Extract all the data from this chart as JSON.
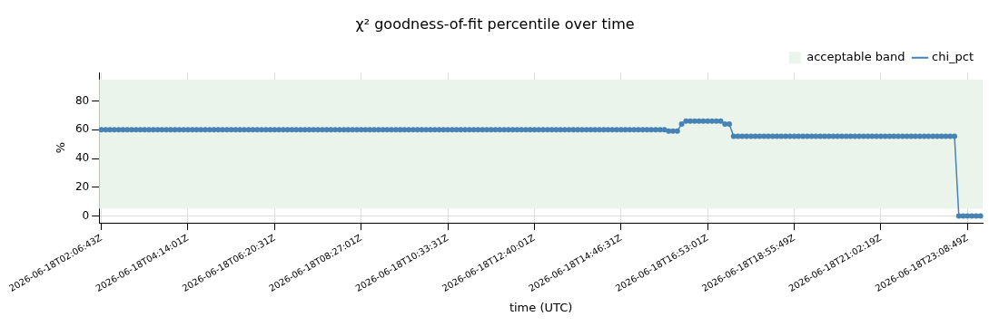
{
  "chart_data": {
    "type": "line",
    "title": "χ² goodness-of-fit percentile over time",
    "xlabel": "time (UTC)",
    "ylabel": "%",
    "categories": [
      "2026-06-18T02:06:43Z",
      null,
      null,
      null,
      null,
      null,
      null,
      null,
      null,
      null,
      null,
      null,
      null,
      null,
      null,
      null,
      null,
      null,
      null,
      null,
      "2026-06-18T04:14:01Z",
      null,
      null,
      null,
      null,
      null,
      null,
      null,
      null,
      null,
      null,
      null,
      null,
      null,
      null,
      null,
      null,
      null,
      null,
      null,
      "2026-06-18T06:20:31Z",
      null,
      null,
      null,
      null,
      null,
      null,
      null,
      null,
      null,
      null,
      null,
      null,
      null,
      null,
      null,
      null,
      null,
      null,
      null,
      "2026-06-18T08:27:01Z",
      null,
      null,
      null,
      null,
      null,
      null,
      null,
      null,
      null,
      null,
      null,
      null,
      null,
      null,
      null,
      null,
      null,
      null,
      null,
      "2026-06-18T10:33:31Z",
      null,
      null,
      null,
      null,
      null,
      null,
      null,
      null,
      null,
      null,
      null,
      null,
      null,
      null,
      null,
      null,
      null,
      null,
      null,
      "2026-06-18T12:40:01Z",
      null,
      null,
      null,
      null,
      null,
      null,
      null,
      null,
      null,
      null,
      null,
      null,
      null,
      null,
      null,
      null,
      null,
      null,
      null,
      "2026-06-18T14:46:31Z",
      null,
      null,
      null,
      null,
      null,
      null,
      null,
      null,
      null,
      null,
      null,
      null,
      null,
      null,
      null,
      null,
      null,
      null,
      null,
      "2026-06-18T16:53:01Z",
      null,
      null,
      null,
      null,
      null,
      null,
      null,
      null,
      null,
      null,
      null,
      null,
      null,
      null,
      null,
      null,
      null,
      null,
      null,
      "2026-06-18T18:55:49Z",
      null,
      null,
      null,
      null,
      null,
      null,
      null,
      null,
      null,
      null,
      null,
      null,
      null,
      null,
      null,
      null,
      null,
      null,
      null,
      "2026-06-18T21:02:19Z",
      null,
      null,
      null,
      null,
      null,
      null,
      null,
      null,
      null,
      null,
      null,
      null,
      null,
      null,
      null,
      null,
      null,
      null,
      null,
      "2026-06-18T23:08:49Z",
      null,
      null,
      null
    ],
    "series": [
      {
        "name": "chi_pct",
        "color": "#4682b4",
        "values": [
          60,
          60,
          60,
          60,
          60,
          60,
          60,
          60,
          60,
          60,
          60,
          60,
          60,
          60,
          60,
          60,
          60,
          60,
          60,
          60,
          60,
          60,
          60,
          60,
          60,
          60,
          60,
          60,
          60,
          60,
          60,
          60,
          60,
          60,
          60,
          60,
          60,
          60,
          60,
          60,
          60,
          60,
          60,
          60,
          60,
          60,
          60,
          60,
          60,
          60,
          60,
          60,
          60,
          60,
          60,
          60,
          60,
          60,
          60,
          60,
          60,
          60,
          60,
          60,
          60,
          60,
          60,
          60,
          60,
          60,
          60,
          60,
          60,
          60,
          60,
          60,
          60,
          60,
          60,
          60,
          60,
          60,
          60,
          60,
          60,
          60,
          60,
          60,
          60,
          60,
          60,
          60,
          60,
          60,
          60,
          60,
          60,
          60,
          60,
          60,
          60,
          60,
          60,
          60,
          60,
          60,
          60,
          60,
          60,
          60,
          60,
          60,
          60,
          60,
          60,
          60,
          60,
          60,
          60,
          60,
          60,
          60,
          60,
          60,
          60,
          60,
          60,
          60,
          60,
          60,
          60,
          59,
          59,
          59,
          64,
          66,
          66,
          66,
          66,
          66,
          66,
          66,
          66,
          66,
          64,
          64,
          55.5,
          55.5,
          55.5,
          55.5,
          55.5,
          55.5,
          55.5,
          55.5,
          55.5,
          55.5,
          55.5,
          55.5,
          55.5,
          55.5,
          55.5,
          55.5,
          55.5,
          55.5,
          55.5,
          55.5,
          55.5,
          55.5,
          55.5,
          55.5,
          55.5,
          55.5,
          55.5,
          55.5,
          55.5,
          55.5,
          55.5,
          55.5,
          55.5,
          55.5,
          55.5,
          55.5,
          55.5,
          55.5,
          55.5,
          55.5,
          55.5,
          55.5,
          55.5,
          55.5,
          55.5,
          55.5,
          55.5,
          55.5,
          55.5,
          55.5,
          55.5,
          55.5,
          0,
          0,
          0,
          0,
          0,
          0
        ]
      }
    ],
    "bands": [
      {
        "axis": "y",
        "from": 5,
        "to": 95,
        "label": "acceptable band",
        "color": "#eaf4ea"
      }
    ],
    "ylim": [
      -4.75,
      99.75
    ],
    "yticks": [
      0,
      20,
      40,
      60,
      80
    ],
    "grid": true,
    "legend": "top right",
    "marker": "circle",
    "line_style": "solid"
  }
}
